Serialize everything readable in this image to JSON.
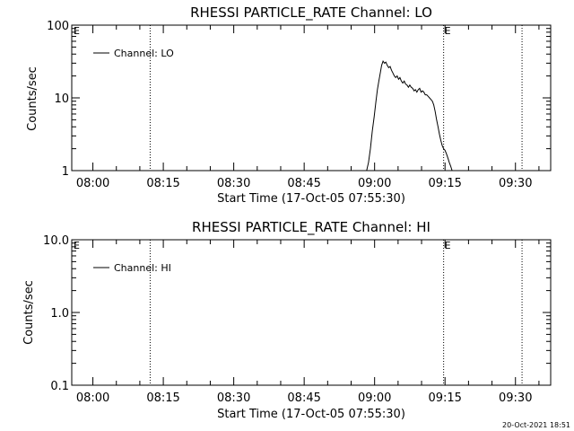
{
  "footer": {
    "date": "20-Oct-2021 18:51"
  },
  "chart_data": [
    {
      "type": "line",
      "title": "RHESSI PARTICLE_RATE Channel: LO",
      "xlabel": "Start Time (17-Oct-05 07:55:30)",
      "ylabel": "Counts/sec",
      "y_scale": "log",
      "ylim": [
        1,
        100
      ],
      "y_ticks": [
        "1",
        "10",
        "100"
      ],
      "x_tick_labels": [
        "08:00",
        "08:15",
        "08:30",
        "08:45",
        "09:00",
        "09:15",
        "09:30"
      ],
      "xlim_minutes": [
        0,
        102
      ],
      "x_tick_minutes": [
        4.5,
        19.5,
        34.5,
        49.5,
        64.5,
        79.5,
        94.5
      ],
      "vlines_minutes": [
        16.7,
        79.2,
        95.9
      ],
      "vline_marker": "E",
      "legend": {
        "position": "top-left",
        "label": "Channel: LO"
      },
      "series": [
        {
          "name": "Channel: LO",
          "x_minutes": [
            62.8,
            63.2,
            63.6,
            64.0,
            64.4,
            64.8,
            65.1,
            65.4,
            65.7,
            66.0,
            66.3,
            66.6,
            66.9,
            67.2,
            67.5,
            67.8,
            68.1,
            68.4,
            68.7,
            69.0,
            69.3,
            69.6,
            69.9,
            70.2,
            70.5,
            70.8,
            71.1,
            71.4,
            71.7,
            72.0,
            72.3,
            72.6,
            72.9,
            73.2,
            73.5,
            73.8,
            74.1,
            74.4,
            74.7,
            75.0,
            75.3,
            75.6,
            75.9,
            76.2,
            76.5,
            76.8,
            77.1,
            77.4,
            77.7,
            78.0,
            78.3,
            78.6,
            78.9,
            79.2,
            79.5,
            79.8,
            80.1,
            80.4,
            80.7,
            81.0
          ],
          "values": [
            1.0,
            1.3,
            2.0,
            3.5,
            5.5,
            9.0,
            13.0,
            17.0,
            22.0,
            28.0,
            32.0,
            30.0,
            31.0,
            28.0,
            26.0,
            27.0,
            24.0,
            22.0,
            20.0,
            19.0,
            20.0,
            18.0,
            19.0,
            17.0,
            16.0,
            17.0,
            15.5,
            15.0,
            14.0,
            15.0,
            14.0,
            13.5,
            12.5,
            13.0,
            12.0,
            13.0,
            13.5,
            12.0,
            12.5,
            12.0,
            11.0,
            11.0,
            10.5,
            10.0,
            9.5,
            9.0,
            8.0,
            6.5,
            5.0,
            4.0,
            3.2,
            2.6,
            2.2,
            2.0,
            1.9,
            1.7,
            1.5,
            1.3,
            1.15,
            1.0
          ]
        }
      ]
    },
    {
      "type": "line",
      "title": "RHESSI PARTICLE_RATE Channel: HI",
      "xlabel": "Start Time (17-Oct-05 07:55:30)",
      "ylabel": "Counts/sec",
      "y_scale": "log",
      "ylim": [
        0.1,
        10
      ],
      "y_ticks": [
        "0.1",
        "1.0",
        "10.0"
      ],
      "x_tick_labels": [
        "08:00",
        "08:15",
        "08:30",
        "08:45",
        "09:00",
        "09:15",
        "09:30"
      ],
      "xlim_minutes": [
        0,
        102
      ],
      "x_tick_minutes": [
        4.5,
        19.5,
        34.5,
        49.5,
        64.5,
        79.5,
        94.5
      ],
      "vlines_minutes": [
        16.7,
        79.2,
        95.9
      ],
      "vline_marker": "E",
      "legend": {
        "position": "top-left",
        "label": "Channel: HI"
      },
      "series": [
        {
          "name": "Channel: HI",
          "x_minutes": [],
          "values": []
        }
      ]
    }
  ]
}
